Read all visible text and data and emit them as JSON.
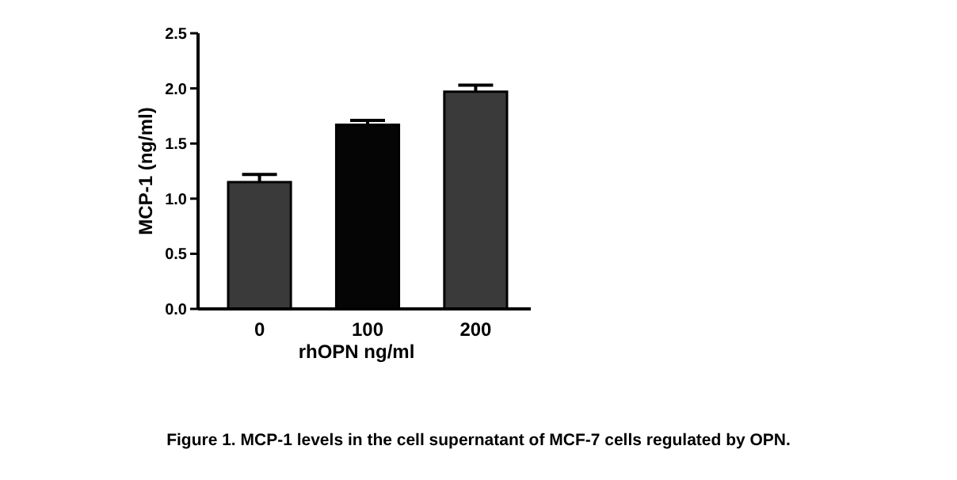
{
  "chart_data": {
    "type": "bar",
    "categories": [
      "0",
      "100",
      "200"
    ],
    "values": [
      1.15,
      1.67,
      1.97
    ],
    "errors": [
      0.07,
      0.04,
      0.06
    ],
    "colors": [
      "#3a3a3a",
      "#050505",
      "#3a3a3a"
    ],
    "xlabel": "rhOPN ng/ml",
    "ylabel": "MCP-1 (ng/ml)",
    "ylim": [
      0,
      2.5
    ],
    "yticks": [
      {
        "value": 0,
        "label": "0.0"
      },
      {
        "value": 0.5,
        "label": "0.5"
      },
      {
        "value": 1,
        "label": "1.0"
      },
      {
        "value": 1.5,
        "label": "1.5"
      },
      {
        "value": 2,
        "label": "2.0"
      },
      {
        "value": 2.5,
        "label": "2.5"
      }
    ],
    "annotations": [
      "Figure 1. MCP-1 levels in the cell supernatant of MCF-7 cells regulated by OPN."
    ]
  }
}
